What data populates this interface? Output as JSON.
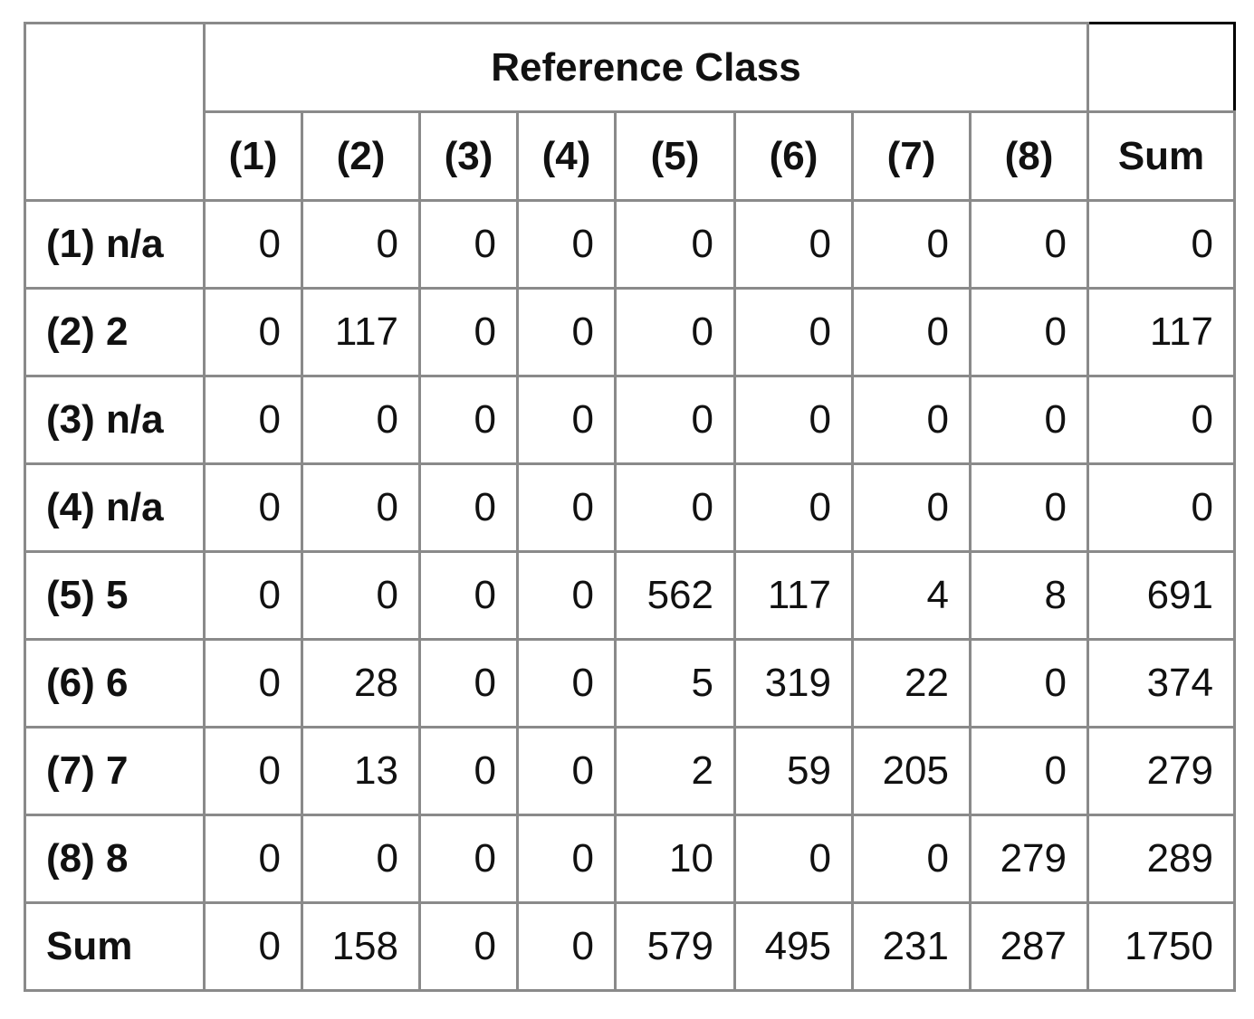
{
  "table": {
    "title": "Reference Class",
    "columns": [
      "(1)",
      "(2)",
      "(3)",
      "(4)",
      "(5)",
      "(6)",
      "(7)",
      "(8)",
      "Sum"
    ],
    "rows": [
      {
        "label": "(1) n/a",
        "values": [
          0,
          0,
          0,
          0,
          0,
          0,
          0,
          0,
          0
        ]
      },
      {
        "label": "(2) 2",
        "values": [
          0,
          117,
          0,
          0,
          0,
          0,
          0,
          0,
          117
        ]
      },
      {
        "label": "(3) n/a",
        "values": [
          0,
          0,
          0,
          0,
          0,
          0,
          0,
          0,
          0
        ]
      },
      {
        "label": "(4) n/a",
        "values": [
          0,
          0,
          0,
          0,
          0,
          0,
          0,
          0,
          0
        ]
      },
      {
        "label": "(5) 5",
        "values": [
          0,
          0,
          0,
          0,
          562,
          117,
          4,
          8,
          691
        ]
      },
      {
        "label": "(6) 6",
        "values": [
          0,
          28,
          0,
          0,
          5,
          319,
          22,
          0,
          374
        ]
      },
      {
        "label": "(7) 7",
        "values": [
          0,
          13,
          0,
          0,
          2,
          59,
          205,
          0,
          279
        ]
      },
      {
        "label": "(8) 8",
        "values": [
          0,
          0,
          0,
          0,
          10,
          0,
          0,
          279,
          289
        ]
      },
      {
        "label": "Sum",
        "values": [
          0,
          158,
          0,
          0,
          579,
          495,
          231,
          287,
          1750
        ]
      }
    ]
  }
}
